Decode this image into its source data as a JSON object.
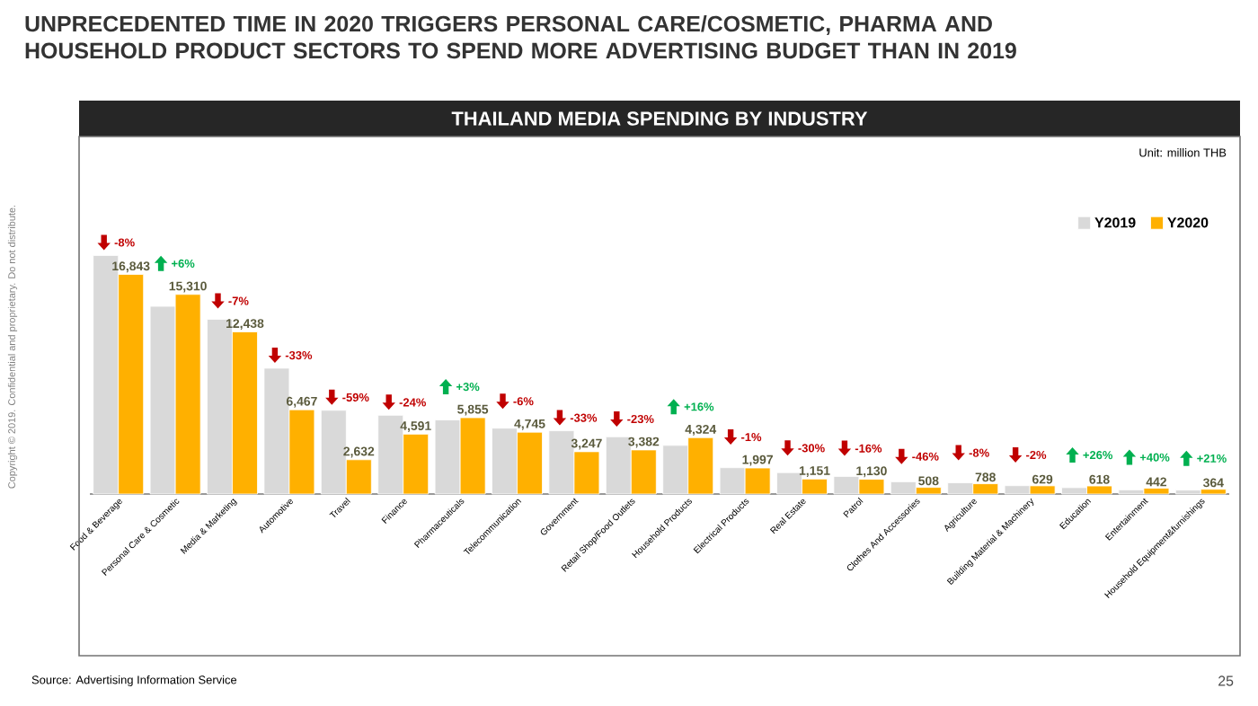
{
  "chart_data": {
    "type": "bar",
    "title": "UNPRECEDENTED TIME IN 2020 TRIGGERS PERSONAL CARE/COSMETIC, PHARMA AND HOUSEHOLD PRODUCT SECTORS TO SPEND MORE ADVERTISING BUDGET THAN IN 2019",
    "subtitle": "THAILAND MEDIA SPENDING BY INDUSTRY",
    "categories": [
      "Food & Beverage",
      "Personal Care & Cosmetic",
      "Media & Marketing",
      "Automotive",
      "Travel",
      "Finance",
      "Pharmaceuticals",
      "Telecommunication",
      "Government",
      "Retail Shop/Food Outlets",
      "Household Products",
      "Electrical Products",
      "Real Estate",
      "Patrol",
      "Clothes And Accessories",
      "Agriculture",
      "Building Material & Machinery",
      "Education",
      "Entertainment",
      "Household Equipment&furnishings"
    ],
    "series": [
      {
        "name": "Y2019",
        "color": "#d9d9d9",
        "values": [
          18300,
          14400,
          13400,
          9650,
          6420,
          6040,
          5680,
          5050,
          4850,
          4390,
          3730,
          2020,
          1640,
          1350,
          940,
          860,
          640,
          490,
          320,
          300
        ]
      },
      {
        "name": "Y2020",
        "color": "#ffb000",
        "values": [
          16843,
          15310,
          12438,
          6467,
          2632,
          4591,
          5855,
          4745,
          3247,
          3382,
          4324,
          1997,
          1151,
          1130,
          508,
          788,
          629,
          618,
          442,
          364
        ],
        "value_labels": [
          "16,843",
          "15,310",
          "12,438",
          "6,467",
          "2,632",
          "4,591",
          "5,855",
          "4,745",
          "3,247",
          "3,382",
          "4,324",
          "1,997",
          "1,151",
          "1,130",
          "508",
          "788",
          "629",
          "618",
          "442",
          "364"
        ]
      }
    ],
    "legend": "top right",
    "annotations": [
      "Unit: million THB",
      "Source: Advertising Information Service",
      "25",
      "Copyright © 2019. Confidential and proprietary. Do not distribute.",
      {
        "text": "-8%",
        "x": "Food & Beverage",
        "y": 18300
      },
      {
        "text": "+6%",
        "x": "Personal Care & Cosmetic",
        "y": 15310
      },
      {
        "text": "-7%",
        "x": "Media & Marketing",
        "y": 13400
      },
      {
        "text": "-33%",
        "x": "Automotive",
        "y": 9650
      },
      {
        "text": "-59%",
        "x": "Travel",
        "y": 6420
      },
      {
        "text": "-24%",
        "x": "Finance",
        "y": 6040
      },
      {
        "text": "+3%",
        "x": "Pharmaceuticals",
        "y": 5855
      },
      {
        "text": "-6%",
        "x": "Telecommunication",
        "y": 5050
      },
      {
        "text": "-33%",
        "x": "Government",
        "y": 4850
      },
      {
        "text": "-23%",
        "x": "Retail Shop/Food Outlets",
        "y": 4390
      },
      {
        "text": "+16%",
        "x": "Household Products",
        "y": 4324
      },
      {
        "text": "-1%",
        "x": "Electrical Products",
        "y": 2020
      },
      {
        "text": "-30%",
        "x": "Real Estate",
        "y": 1640
      },
      {
        "text": "-16%",
        "x": "Patrol",
        "y": 1350
      },
      {
        "text": "-46%",
        "x": "Clothes And Accessories",
        "y": 940
      },
      {
        "text": "-8%",
        "x": "Agriculture",
        "y": 860
      },
      {
        "text": "-2%",
        "x": "Building Material & Machinery",
        "y": 640
      },
      {
        "text": "+26%",
        "x": "Education",
        "y": 618
      },
      {
        "text": "+40%",
        "x": "Entertainment",
        "y": 442
      },
      {
        "text": "+21%",
        "x": "Household Equipment&furnishings",
        "y": 364
      }
    ]
  }
}
